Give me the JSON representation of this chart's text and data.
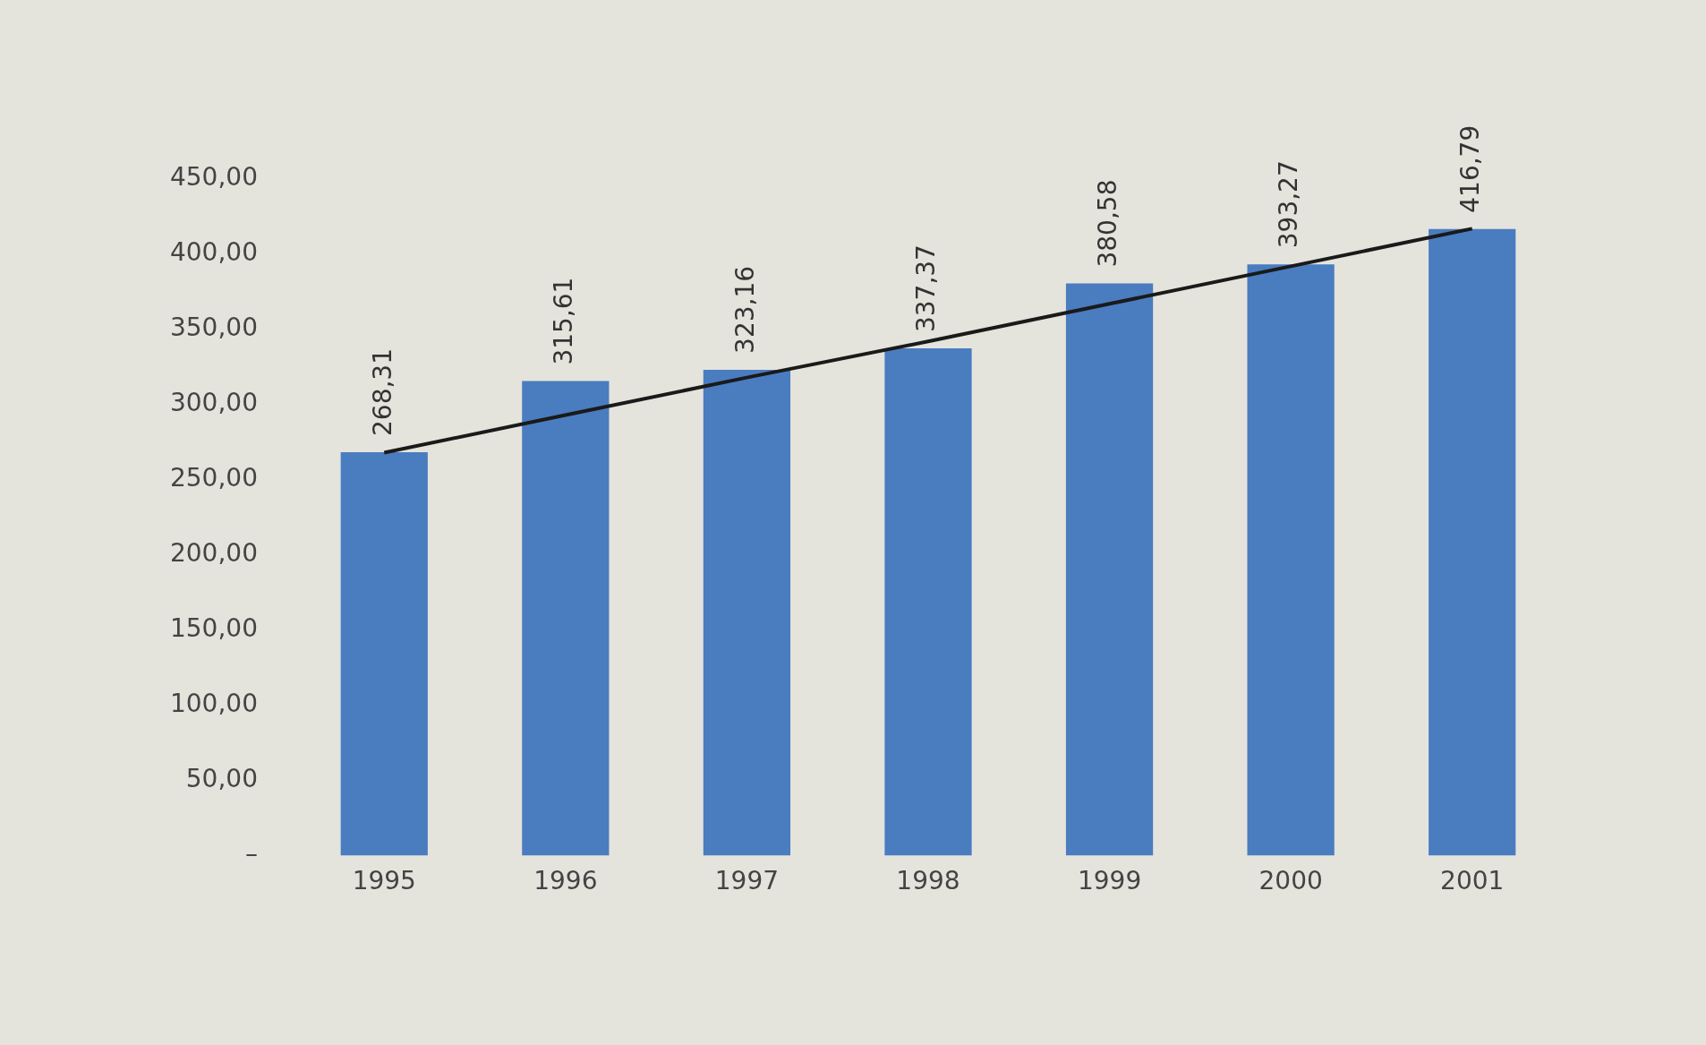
{
  "chart_data": {
    "type": "bar",
    "categories": [
      "1995",
      "1996",
      "1997",
      "1998",
      "1999",
      "2000",
      "2001"
    ],
    "series": [
      {
        "color": "#4a7cc0",
        "values": [
          268.31,
          315.61,
          323.16,
          337.37,
          380.58,
          393.27,
          416.79
        ],
        "value_labels": [
          "268,31",
          "315,61",
          "323,16",
          "337,37",
          "380,58",
          "393,27",
          "416,79"
        ]
      },
      {
        "type": "line",
        "color": "#1a1a1a",
        "values": [
          268,
          293,
          318,
          342,
          367,
          392,
          417
        ]
      }
    ],
    "ylim": [
      0,
      450
    ],
    "yticks": [
      {
        "value": 0,
        "label": "–"
      },
      {
        "value": 50,
        "label": "50,00"
      },
      {
        "value": 100,
        "label": "100,00"
      },
      {
        "value": 150,
        "label": "150,00"
      },
      {
        "value": 200,
        "label": "200,00"
      },
      {
        "value": 250,
        "label": "250,00"
      },
      {
        "value": 300,
        "label": "300,00"
      },
      {
        "value": 350,
        "label": "350,00"
      },
      {
        "value": 400,
        "label": "400,00"
      },
      {
        "value": 450,
        "label": "450,00"
      }
    ],
    "grid": false,
    "legend": false
  }
}
